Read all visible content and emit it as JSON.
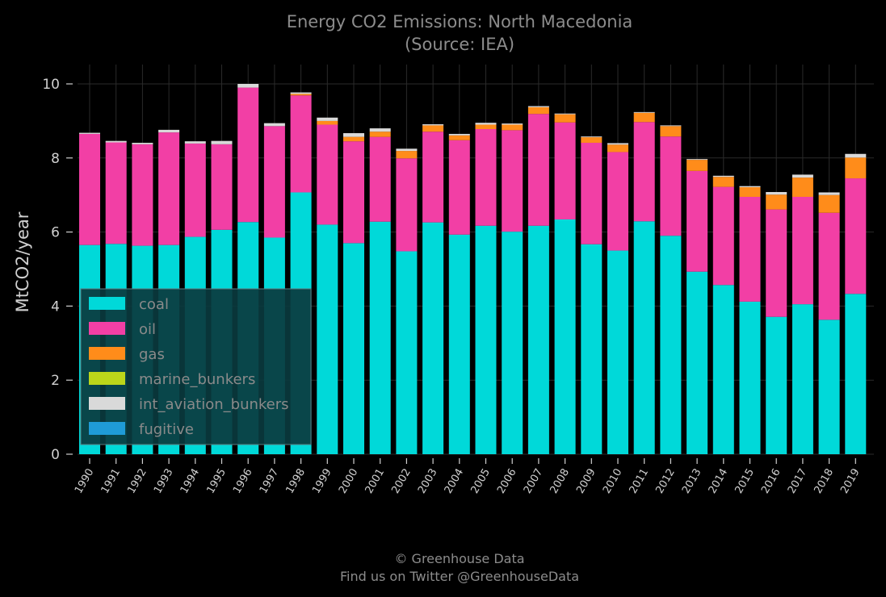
{
  "chart_data": {
    "type": "bar",
    "stacked": true,
    "title": "Energy CO2 Emissions: North Macedonia",
    "subtitle": "(Source: IEA)",
    "xlabel": "",
    "ylabel": "MtCO2/year",
    "ylim": [
      0,
      10.5
    ],
    "yticks": [
      0,
      2,
      4,
      6,
      8,
      10
    ],
    "grid": true,
    "legend_position": "lower-left",
    "categories": [
      "1990",
      "1991",
      "1992",
      "1993",
      "1994",
      "1995",
      "1996",
      "1997",
      "1998",
      "1999",
      "2000",
      "2001",
      "2002",
      "2003",
      "2004",
      "2005",
      "2006",
      "2007",
      "2008",
      "2009",
      "2010",
      "2011",
      "2012",
      "2013",
      "2014",
      "2015",
      "2016",
      "2017",
      "2018",
      "2019"
    ],
    "series": [
      {
        "name": "coal",
        "color": "#00d9d9",
        "values": [
          5.65,
          5.68,
          5.63,
          5.65,
          5.87,
          6.06,
          6.27,
          5.85,
          7.07,
          6.2,
          5.7,
          6.28,
          5.48,
          6.26,
          5.93,
          6.17,
          6.01,
          6.17,
          6.34,
          5.67,
          5.5,
          6.29,
          5.9,
          4.93,
          4.57,
          4.12,
          3.71,
          4.05,
          3.63,
          4.33
        ]
      },
      {
        "name": "oil",
        "color": "#f23fa5",
        "values": [
          3.0,
          2.74,
          2.74,
          3.04,
          2.52,
          2.31,
          3.63,
          3.01,
          2.62,
          2.7,
          2.75,
          2.29,
          2.51,
          2.45,
          2.55,
          2.61,
          2.74,
          3.02,
          2.62,
          2.74,
          2.66,
          2.68,
          2.68,
          2.72,
          2.65,
          2.83,
          2.9,
          2.9,
          2.89,
          3.12
        ]
      },
      {
        "name": "gas",
        "color": "#ff8c1a",
        "values": [
          0,
          0,
          0,
          0,
          0,
          0,
          0,
          0,
          0.04,
          0.1,
          0.12,
          0.14,
          0.2,
          0.17,
          0.13,
          0.12,
          0.15,
          0.18,
          0.22,
          0.15,
          0.2,
          0.25,
          0.28,
          0.3,
          0.27,
          0.26,
          0.4,
          0.52,
          0.48,
          0.56
        ]
      },
      {
        "name": "marine_bunkers",
        "color": "#bcd61a",
        "values": [
          0,
          0,
          0,
          0,
          0,
          0,
          0,
          0,
          0,
          0,
          0,
          0,
          0,
          0,
          0,
          0,
          0,
          0,
          0,
          0,
          0,
          0,
          0,
          0,
          0,
          0,
          0,
          0,
          0,
          0
        ]
      },
      {
        "name": "int_aviation_bunkers",
        "color": "#d9d9d9",
        "values": [
          0.03,
          0.04,
          0.04,
          0.07,
          0.06,
          0.09,
          0.1,
          0.08,
          0.04,
          0.09,
          0.1,
          0.09,
          0.06,
          0.03,
          0.04,
          0.05,
          0.03,
          0.03,
          0.02,
          0.02,
          0.04,
          0.02,
          0.02,
          0.02,
          0.03,
          0.03,
          0.07,
          0.08,
          0.07,
          0.1
        ]
      },
      {
        "name": "fugitive",
        "color": "#1f9bd6",
        "values": [
          0,
          0,
          0,
          0,
          0,
          0,
          0,
          0,
          0,
          0,
          0,
          0,
          0,
          0,
          0,
          0,
          0,
          0,
          0,
          0,
          0,
          0,
          0,
          0,
          0,
          0,
          0,
          0,
          0,
          0
        ]
      }
    ]
  },
  "footer": {
    "line1": "© Greenhouse Data",
    "line2": "Find us on Twitter @GreenhouseData"
  }
}
